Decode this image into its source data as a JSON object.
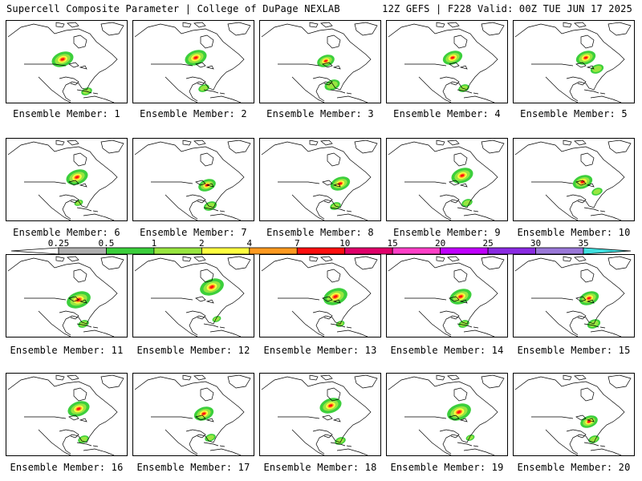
{
  "header": {
    "title": "Supercell Composite Parameter | College of DuPage NEXLAB",
    "run_info": "12Z GEFS | F228 Valid: 00Z TUE JUN 17 2025"
  },
  "legend": {
    "labels": [
      "0.25",
      "0.5",
      "1",
      "2",
      "4",
      "7",
      "10",
      "15",
      "20",
      "25",
      "30",
      "35"
    ],
    "colors": [
      "#ffffff",
      "#b0b0b0",
      "#3ccf3c",
      "#98e640",
      "#ffff40",
      "#ff9a20",
      "#ff1010",
      "#e0006a",
      "#ff40c8",
      "#c000ff",
      "#8a2be2",
      "#9a78d8",
      "#40e0e0"
    ]
  },
  "members": [
    {
      "label": "Ensemble Member: 1"
    },
    {
      "label": "Ensemble Member: 2"
    },
    {
      "label": "Ensemble Member: 3"
    },
    {
      "label": "Ensemble Member: 4"
    },
    {
      "label": "Ensemble Member: 5"
    },
    {
      "label": "Ensemble Member: 6"
    },
    {
      "label": "Ensemble Member: 7"
    },
    {
      "label": "Ensemble Member: 8"
    },
    {
      "label": "Ensemble Member: 9"
    },
    {
      "label": "Ensemble Member: 10"
    },
    {
      "label": "Ensemble Member: 11"
    },
    {
      "label": "Ensemble Member: 12"
    },
    {
      "label": "Ensemble Member: 13"
    },
    {
      "label": "Ensemble Member: 14"
    },
    {
      "label": "Ensemble Member: 15"
    },
    {
      "label": "Ensemble Member: 16"
    },
    {
      "label": "Ensemble Member: 17"
    },
    {
      "label": "Ensemble Member: 18"
    },
    {
      "label": "Ensemble Member: 19"
    },
    {
      "label": "Ensemble Member: 20"
    }
  ]
}
